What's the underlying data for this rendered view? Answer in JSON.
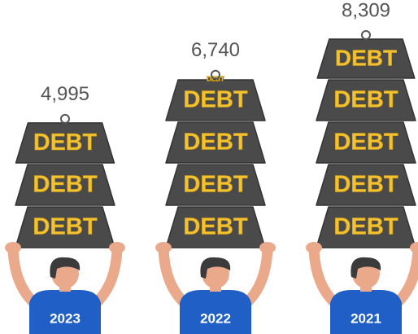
{
  "chart_data": {
    "type": "pictograph",
    "categories": [
      "2023",
      "2022",
      "2021"
    ],
    "values": [
      4995,
      6740,
      8309
    ],
    "value_labels": [
      "4,995",
      "6,740",
      "8,309"
    ],
    "weight_label": "DEBT",
    "color": "#4a4a4a"
  }
}
